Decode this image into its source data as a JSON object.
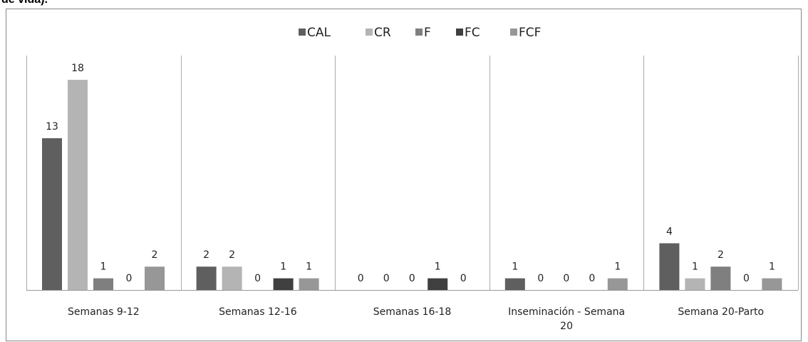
{
  "chart_data": {
    "type": "bar",
    "caption": "de vida).",
    "categories": [
      "Semanas 9-12",
      "Semanas 12-16",
      "Semanas 16-18",
      "Inseminación - Semana 20",
      "Semana 20-Parto"
    ],
    "series": [
      {
        "name": "CAL",
        "color": "#5f5f5f",
        "values": [
          13,
          2,
          0,
          1,
          4
        ]
      },
      {
        "name": "CR",
        "color": "#b4b4b4",
        "values": [
          18,
          2,
          0,
          0,
          1
        ]
      },
      {
        "name": "F",
        "color": "#7f7f7f",
        "values": [
          1,
          0,
          0,
          0,
          2
        ]
      },
      {
        "name": "FC",
        "color": "#404040",
        "values": [
          0,
          1,
          1,
          0,
          0
        ]
      },
      {
        "name": "FCF",
        "color": "#979797",
        "values": [
          2,
          1,
          0,
          1,
          1
        ]
      }
    ],
    "ylim": [
      0,
      18
    ]
  }
}
